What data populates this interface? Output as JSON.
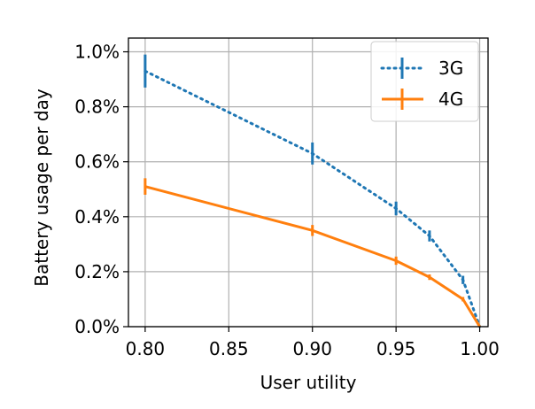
{
  "chart_data": {
    "type": "line",
    "xlabel": "User utility",
    "ylabel": "Battery usage per day",
    "xlim": [
      0.79,
      1.005
    ],
    "ylim": [
      0.0,
      1.05
    ],
    "x_ticks": [
      0.8,
      0.85,
      0.9,
      0.95,
      1.0
    ],
    "x_tick_labels": [
      "0.80",
      "0.85",
      "0.90",
      "0.95",
      "1.00"
    ],
    "y_ticks": [
      0.0,
      0.2,
      0.4,
      0.6,
      0.8,
      1.0
    ],
    "y_tick_labels": [
      "0.0%",
      "0.2%",
      "0.4%",
      "0.6%",
      "0.8%",
      "1.0%"
    ],
    "grid": true,
    "legend_position": "top-right",
    "series": [
      {
        "name": "3G",
        "color": "#1f77b4",
        "line_style": "dotted",
        "x": [
          0.8,
          0.9,
          0.95,
          0.97,
          0.99,
          1.0
        ],
        "y": [
          0.93,
          0.63,
          0.43,
          0.33,
          0.17,
          0.0
        ],
        "err": [
          0.06,
          0.04,
          0.025,
          0.02,
          0.015,
          0.0
        ]
      },
      {
        "name": "4G",
        "color": "#ff7f0e",
        "line_style": "solid",
        "x": [
          0.8,
          0.9,
          0.95,
          0.97,
          0.99,
          1.0
        ],
        "y": [
          0.51,
          0.35,
          0.24,
          0.18,
          0.1,
          0.0
        ],
        "err": [
          0.03,
          0.02,
          0.015,
          0.01,
          0.008,
          0.0
        ]
      }
    ]
  }
}
